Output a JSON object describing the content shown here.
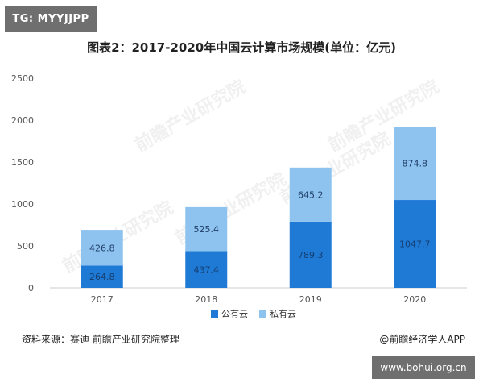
{
  "tag": "TG: MYYJJPP",
  "url_badge": "www.bohui.org.cn",
  "source_text": "资料来源：赛迪 前瞻产业研究院整理",
  "credit_text": "@前瞻经济学人APP",
  "watermark_text": "前瞻产业研究院",
  "colors": {
    "public": "#1f7ad6",
    "private": "#8ec3f0",
    "axis": "#cccccc",
    "tick_text": "#555555"
  },
  "chart_data": {
    "type": "bar",
    "stacked": true,
    "title": "图表2：2017-2020年中国云计算市场规模(单位：亿元)",
    "categories": [
      "2017",
      "2018",
      "2019",
      "2020"
    ],
    "series": [
      {
        "name": "公有云",
        "values": [
          264.8,
          437.4,
          789.3,
          1047.7
        ],
        "labels": [
          "264.8",
          "437.4",
          "789.3",
          "1047.7"
        ]
      },
      {
        "name": "私有云",
        "values": [
          426.8,
          525.4,
          645.2,
          874.8
        ],
        "labels": [
          "426.8",
          "525.4",
          "645.2",
          "874.8"
        ]
      }
    ],
    "yticks": [
      "0",
      "500",
      "1000",
      "1500",
      "2000",
      "2500"
    ],
    "ylim": [
      0,
      2500
    ],
    "legend": "bottom",
    "xlabel": "",
    "ylabel": ""
  }
}
